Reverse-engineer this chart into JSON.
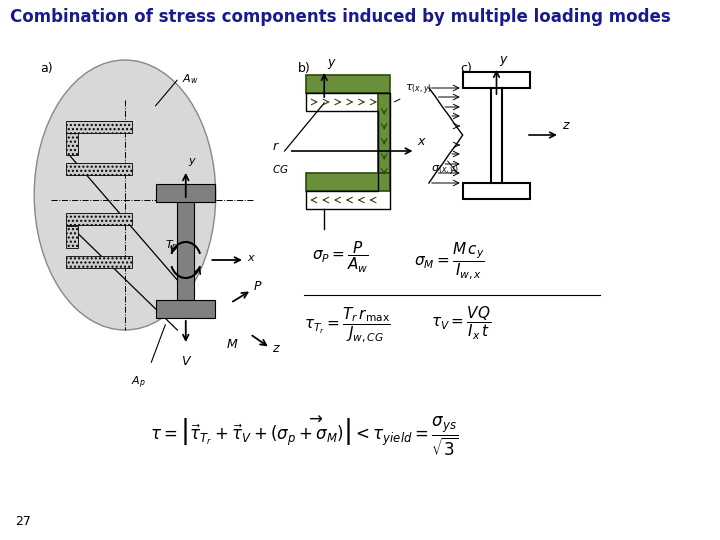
{
  "title": "Combination of stress components induced by multiple loading modes",
  "title_color": "#1a1a8c",
  "title_fontsize": 12,
  "bg_color": "#ffffff",
  "label_a": "a)",
  "label_b": "b)",
  "label_c": "c)",
  "page_num": "27"
}
